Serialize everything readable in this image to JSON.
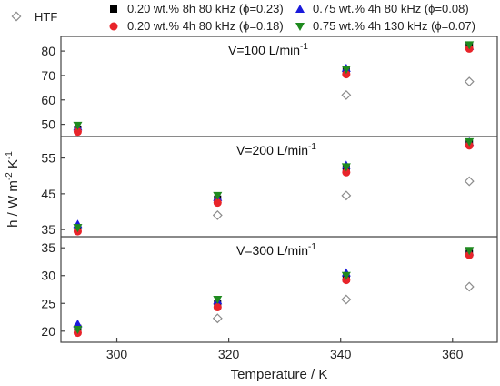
{
  "chart_data": {
    "type": "scatter",
    "xlabel": "Temperature / K",
    "ylabel": "h / W m",
    "ylabel_sup1": "-2",
    "ylabel_mid": " K",
    "ylabel_sup2": "-1",
    "xlim": [
      290,
      368
    ],
    "xticks": [
      "300",
      "320",
      "340",
      "360"
    ],
    "legend": [
      {
        "key": "htf",
        "label": "HTF",
        "marker": "diamond-open",
        "color": "#8c8c8c"
      },
      {
        "key": "s1",
        "label": "0.20 wt.% 8h 80 kHz (ϕ=0.23)",
        "marker": "square",
        "color": "#000000"
      },
      {
        "key": "s2",
        "label": "0.75 wt.% 4h 80 kHz (ϕ=0.08)",
        "marker": "triangle-up",
        "color": "#1a1adb"
      },
      {
        "key": "s3",
        "label": "0.20 wt.% 4h 80 kHz (ϕ=0.18)",
        "marker": "circle",
        "color": "#e8242a"
      },
      {
        "key": "s4",
        "label": "0.75 wt.% 4h 130 kHz (ϕ=0.07)",
        "marker": "triangle-down",
        "color": "#1f8a1f"
      }
    ],
    "panels": [
      {
        "annotation": "V=100 L/min",
        "annotation_sup": "-1",
        "ylim": [
          45,
          86
        ],
        "yticks": [
          "50",
          "60",
          "70",
          "80"
        ],
        "x": [
          293,
          318,
          341,
          363
        ],
        "series": {
          "htf": [
            null,
            null,
            62,
            67.5
          ],
          "s1": [
            48,
            null,
            72,
            82
          ],
          "s2": [
            49,
            null,
            73,
            82
          ],
          "s3": [
            47,
            null,
            70.5,
            81
          ],
          "s4": [
            49.5,
            null,
            72.5,
            82.5
          ]
        }
      },
      {
        "annotation": "V=200 L/min",
        "annotation_sup": "-1",
        "ylim": [
          33,
          61
        ],
        "yticks": [
          "35",
          "45",
          "55"
        ],
        "x": [
          293,
          318,
          341,
          363
        ],
        "series": {
          "htf": [
            null,
            39,
            44.5,
            48.5
          ],
          "s1": [
            35.5,
            43.5,
            52,
            59
          ],
          "s2": [
            36.5,
            44,
            53,
            59.5
          ],
          "s3": [
            34.5,
            42.5,
            51,
            58.5
          ],
          "s4": [
            35.5,
            44.5,
            52.5,
            59.5
          ]
        }
      },
      {
        "annotation": "V=300 L/min",
        "annotation_sup": "-1",
        "ylim": [
          18,
          37
        ],
        "yticks": [
          "20",
          "25",
          "30",
          "35"
        ],
        "x": [
          293,
          318,
          341,
          363
        ],
        "series": {
          "htf": [
            null,
            22.3,
            25.7,
            28
          ],
          "s1": [
            20.5,
            25,
            29.5,
            34
          ],
          "s2": [
            21.3,
            25.5,
            30.5,
            34.3
          ],
          "s3": [
            19.7,
            24.3,
            29.2,
            33.7
          ],
          "s4": [
            20.3,
            25.7,
            30,
            34.5
          ]
        }
      }
    ]
  }
}
